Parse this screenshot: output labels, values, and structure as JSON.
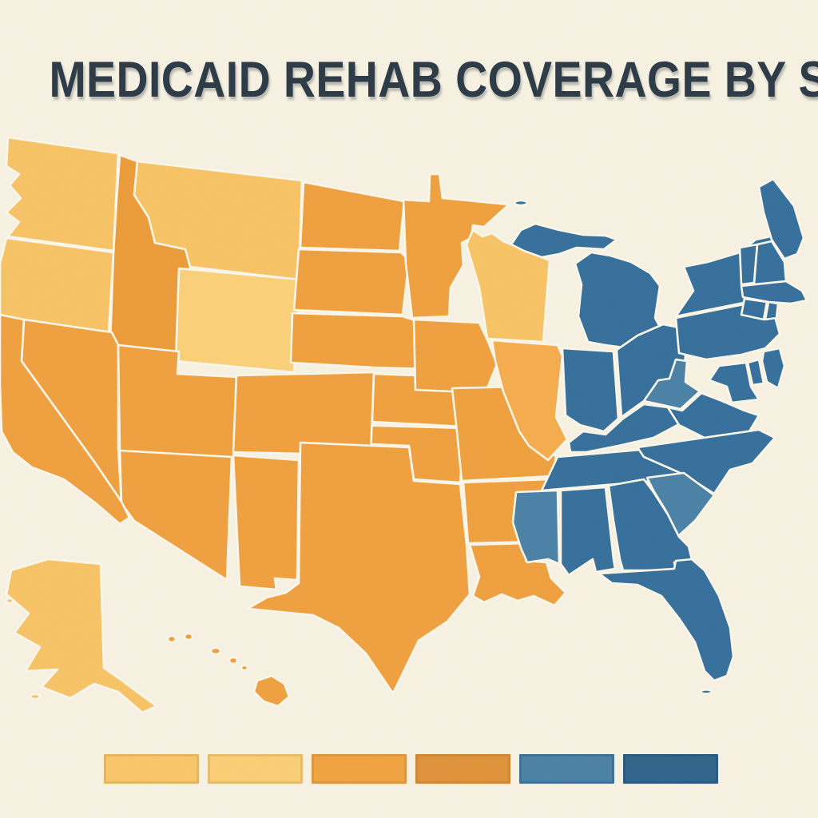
{
  "title": "MEDICAID REHAB COVERAGE BY STATE",
  "background_color": "#F7F2E2",
  "title_color": "#2B3945",
  "map": {
    "border_color": "#FBF7EA",
    "categories": {
      "t1": "#FBD078",
      "t2": "#F8C365",
      "t3": "#F5AC4C",
      "t4": "#F0A03E",
      "t4d": "#EC9B38",
      "t5": "#4A81A6",
      "t6": "#356F9B"
    },
    "states": [
      {
        "id": "WA",
        "name": "Washington",
        "category": "t2"
      },
      {
        "id": "OR",
        "name": "Oregon",
        "category": "t2"
      },
      {
        "id": "CA",
        "name": "California",
        "category": "t4"
      },
      {
        "id": "ID",
        "name": "Idaho",
        "category": "t4d"
      },
      {
        "id": "MT",
        "name": "Montana",
        "category": "t2"
      },
      {
        "id": "WY",
        "name": "Wyoming",
        "category": "t1"
      },
      {
        "id": "NV",
        "name": "Nevada",
        "category": "t4"
      },
      {
        "id": "UT",
        "name": "Utah",
        "category": "t4"
      },
      {
        "id": "CO",
        "name": "Colorado",
        "category": "t4"
      },
      {
        "id": "AZ",
        "name": "Arizona",
        "category": "t4"
      },
      {
        "id": "NM",
        "name": "New Mexico",
        "category": "t4"
      },
      {
        "id": "ND",
        "name": "North Dakota",
        "category": "t4"
      },
      {
        "id": "SD",
        "name": "South Dakota",
        "category": "t4"
      },
      {
        "id": "NE",
        "name": "Nebraska",
        "category": "t4"
      },
      {
        "id": "KS",
        "name": "Kansas",
        "category": "t4"
      },
      {
        "id": "OK",
        "name": "Oklahoma",
        "category": "t4"
      },
      {
        "id": "TX",
        "name": "Texas",
        "category": "t4"
      },
      {
        "id": "MN",
        "name": "Minnesota",
        "category": "t4"
      },
      {
        "id": "IA",
        "name": "Iowa",
        "category": "t4"
      },
      {
        "id": "MO",
        "name": "Missouri",
        "category": "t4"
      },
      {
        "id": "AR",
        "name": "Arkansas",
        "category": "t4"
      },
      {
        "id": "LA",
        "name": "Louisiana",
        "category": "t4"
      },
      {
        "id": "WI",
        "name": "Wisconsin",
        "category": "t2"
      },
      {
        "id": "IL",
        "name": "Illinois",
        "category": "t3"
      },
      {
        "id": "MI",
        "name": "Michigan",
        "category": "t6"
      },
      {
        "id": "IN",
        "name": "Indiana",
        "category": "t6"
      },
      {
        "id": "OH",
        "name": "Ohio",
        "category": "t6"
      },
      {
        "id": "KY",
        "name": "Kentucky",
        "category": "t6"
      },
      {
        "id": "TN",
        "name": "Tennessee",
        "category": "t6"
      },
      {
        "id": "WV",
        "name": "West Virginia",
        "category": "t5"
      },
      {
        "id": "VA",
        "name": "Virginia",
        "category": "t6"
      },
      {
        "id": "NC",
        "name": "North Carolina",
        "category": "t6"
      },
      {
        "id": "SC",
        "name": "South Carolina",
        "category": "t5"
      },
      {
        "id": "GA",
        "name": "Georgia",
        "category": "t6"
      },
      {
        "id": "AL",
        "name": "Alabama",
        "category": "t6"
      },
      {
        "id": "MS",
        "name": "Mississippi",
        "category": "t5"
      },
      {
        "id": "FL",
        "name": "Florida",
        "category": "t6"
      },
      {
        "id": "PA",
        "name": "Pennsylvania",
        "category": "t6"
      },
      {
        "id": "NY",
        "name": "New York",
        "category": "t6"
      },
      {
        "id": "NJ",
        "name": "New Jersey",
        "category": "t6"
      },
      {
        "id": "MD",
        "name": "Maryland",
        "category": "t6"
      },
      {
        "id": "DE",
        "name": "Delaware",
        "category": "t6"
      },
      {
        "id": "ME",
        "name": "Maine",
        "category": "t6"
      },
      {
        "id": "VT",
        "name": "Vermont",
        "category": "t6"
      },
      {
        "id": "NH",
        "name": "New Hampshire",
        "category": "t6"
      },
      {
        "id": "MA",
        "name": "Massachusetts",
        "category": "t6"
      },
      {
        "id": "CT",
        "name": "Connecticut",
        "category": "t6"
      },
      {
        "id": "RI",
        "name": "Rhode Island",
        "category": "t6"
      },
      {
        "id": "AK",
        "name": "Alaska",
        "category": "t2"
      },
      {
        "id": "HI",
        "name": "Hawaii",
        "category": "t4"
      }
    ]
  },
  "legend": {
    "swatches": [
      {
        "name": "tier-1",
        "color": "#FAC669",
        "family": "orange"
      },
      {
        "name": "tier-2",
        "color": "#FBCE74",
        "family": "orange"
      },
      {
        "name": "tier-3",
        "color": "#F1A341",
        "family": "orange"
      },
      {
        "name": "tier-4",
        "color": "#E09238",
        "family": "orange"
      },
      {
        "name": "tier-5",
        "color": "#4B81A5",
        "family": "blue"
      },
      {
        "name": "tier-6",
        "color": "#2F6489",
        "family": "blue"
      }
    ]
  },
  "chart_data": {
    "type": "choropleth",
    "title": "MEDICAID REHAB COVERAGE BY STATE",
    "region": "United States",
    "legend_labels_visible": false,
    "legend_colors": [
      "#FAC669",
      "#FBCE74",
      "#F1A341",
      "#E09238",
      "#4B81A5",
      "#2F6489"
    ],
    "tiers": {
      "gold_light": [
        "WY"
      ],
      "gold": [
        "WA",
        "OR",
        "MT",
        "WI",
        "AK"
      ],
      "light_orange": [
        "IL"
      ],
      "orange": [
        "CA",
        "NV",
        "ID",
        "UT",
        "CO",
        "AZ",
        "NM",
        "ND",
        "SD",
        "NE",
        "KS",
        "OK",
        "TX",
        "MN",
        "IA",
        "MO",
        "AR",
        "LA",
        "HI"
      ],
      "steel_blue": [
        "WV",
        "SC",
        "MS"
      ],
      "blue": [
        "MI",
        "IN",
        "OH",
        "KY",
        "TN",
        "AL",
        "GA",
        "FL",
        "NC",
        "VA",
        "PA",
        "NY",
        "NJ",
        "DE",
        "MD",
        "CT",
        "RI",
        "MA",
        "VT",
        "NH",
        "ME"
      ]
    }
  }
}
